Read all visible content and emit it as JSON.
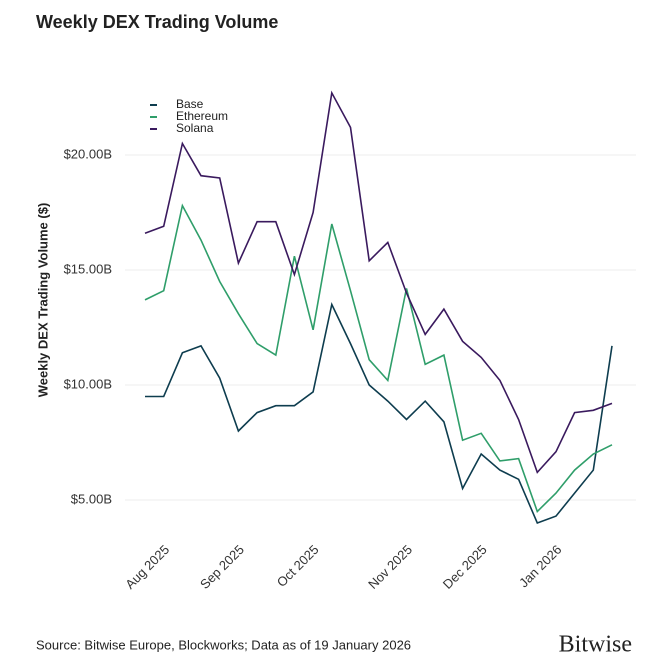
{
  "chart_data": {
    "type": "line",
    "title": "Weekly DEX Trading Volume",
    "y_label": "Weekly DEX Trading Volume ($)",
    "categories": [
      null,
      "Aug 2025",
      null,
      null,
      null,
      "Sep 2025",
      null,
      null,
      null,
      "Oct 2025",
      null,
      null,
      null,
      null,
      "Nov 2025",
      null,
      null,
      null,
      "Dec 2025",
      null,
      null,
      null,
      "Jan 2026",
      null,
      null,
      null
    ],
    "series": [
      {
        "name": "Base",
        "color": "#0e3d4f",
        "values": [
          9.5,
          9.5,
          11.4,
          11.7,
          10.3,
          8.0,
          8.8,
          9.1,
          9.1,
          9.7,
          13.5,
          11.8,
          10.0,
          9.3,
          8.5,
          9.3,
          8.4,
          5.5,
          7.0,
          6.3,
          5.9,
          4.0,
          4.3,
          5.3,
          6.3,
          11.7
        ]
      },
      {
        "name": "Ethereum",
        "color": "#2f9e6a",
        "values": [
          13.7,
          14.1,
          17.8,
          16.3,
          14.5,
          13.1,
          11.8,
          11.3,
          15.6,
          12.4,
          17.0,
          14.1,
          11.1,
          10.2,
          14.2,
          10.9,
          11.3,
          7.6,
          7.9,
          6.7,
          6.8,
          4.5,
          5.3,
          6.3,
          7.0,
          7.4
        ]
      },
      {
        "name": "Solana",
        "color": "#3a1a5e",
        "values": [
          16.6,
          16.9,
          20.5,
          19.1,
          19.0,
          15.3,
          17.1,
          17.1,
          14.8,
          17.5,
          22.7,
          21.2,
          15.4,
          16.2,
          14.0,
          12.2,
          13.3,
          11.9,
          11.2,
          10.2,
          8.5,
          6.2,
          7.1,
          8.8,
          8.9,
          9.2
        ]
      }
    ],
    "ylim": [
      3.5,
      24
    ],
    "yticks": [
      {
        "value": 5,
        "label": "$5.00B"
      },
      {
        "value": 10,
        "label": "$10.00B"
      },
      {
        "value": 15,
        "label": "$15.00B"
      },
      {
        "value": 20,
        "label": "$20.00B"
      }
    ],
    "grid": true,
    "legend": "upper left"
  },
  "footer": {
    "source": "Source: Bitwise Europe, Blockworks; Data as of 19 January 2026",
    "logo": "Bitwise"
  }
}
